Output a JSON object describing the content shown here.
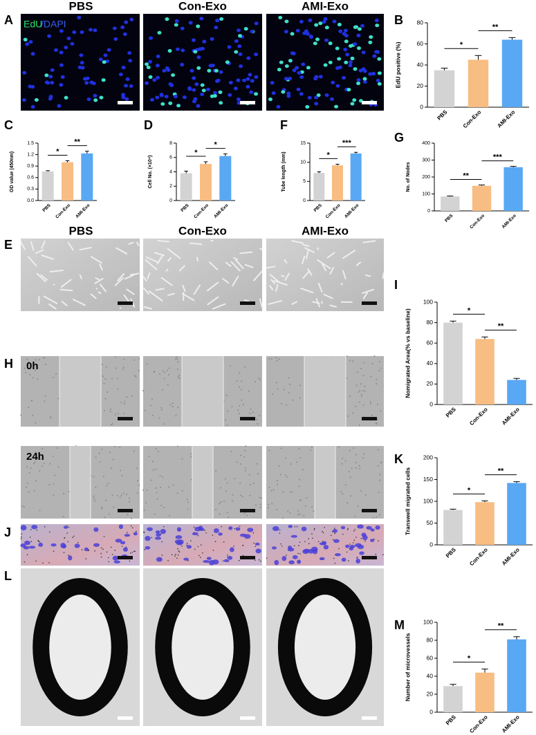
{
  "header_top": [
    "PBS",
    "Con-Exo",
    "AMI-Exo"
  ],
  "header_mid": [
    "PBS",
    "Con-Exo",
    "AMI-Exo"
  ],
  "image_panels": [
    "A",
    "E",
    "H",
    "J",
    "L"
  ],
  "stain": [
    "EdU",
    "/DAPI"
  ],
  "timepoints": [
    "0h",
    "24h"
  ],
  "chart_data": [
    {
      "type": "bar",
      "panel": "B",
      "ylabel": "EdU positive (%)",
      "categories": [
        "PBS",
        "Con-Exo",
        "AMI-Exo"
      ],
      "values": [
        35,
        45,
        64
      ],
      "errors": [
        2,
        4,
        2
      ],
      "colors": [
        "#d3d3d3",
        "#f8bd82",
        "#59a8f4"
      ],
      "ylim": [
        0,
        80
      ],
      "yticks": [
        0,
        20,
        40,
        60,
        80
      ],
      "significance": [
        {
          "between": [
            0,
            1
          ],
          "label": "*"
        },
        {
          "between": [
            1,
            2
          ],
          "label": "**"
        }
      ]
    },
    {
      "type": "bar",
      "panel": "C",
      "ylabel": "OD value (450nm)",
      "categories": [
        "PBS",
        "Con-Exo",
        "AMI-Exo"
      ],
      "values": [
        0.76,
        1.0,
        1.23
      ],
      "errors": [
        0.02,
        0.04,
        0.06
      ],
      "colors": [
        "#d3d3d3",
        "#f8bd82",
        "#59a8f4"
      ],
      "ylim": [
        0,
        1.5
      ],
      "yticks": [
        {
          "value": 0,
          "label": "0.0"
        },
        0.3,
        0.6,
        0.9,
        1.2,
        1.5
      ],
      "significance": [
        {
          "between": [
            0,
            1
          ],
          "label": "*"
        },
        {
          "between": [
            1,
            2
          ],
          "label": "**"
        }
      ]
    },
    {
      "type": "bar",
      "panel": "D",
      "ylabel": "Cell No. (×10⁴)",
      "categories": [
        "PBS",
        "Con-Exo",
        "AMI-Exo"
      ],
      "values": [
        3.8,
        5.1,
        6.2
      ],
      "errors": [
        0.3,
        0.3,
        0.3
      ],
      "colors": [
        "#d3d3d3",
        "#f8bd82",
        "#59a8f4"
      ],
      "ylim": [
        0,
        8
      ],
      "yticks": [
        0,
        2,
        4,
        6,
        8
      ],
      "significance": [
        {
          "between": [
            0,
            1
          ],
          "label": "*"
        },
        {
          "between": [
            1,
            2
          ],
          "label": "*"
        }
      ]
    },
    {
      "type": "bar",
      "panel": "F",
      "ylabel": "Tube length (mm)",
      "categories": [
        "PBS",
        "Con-Exo",
        "AMI-Exo"
      ],
      "values": [
        7.2,
        9.2,
        12.3
      ],
      "errors": [
        0.3,
        0.3,
        0.3
      ],
      "colors": [
        "#d3d3d3",
        "#f8bd82",
        "#59a8f4"
      ],
      "ylim": [
        0,
        15
      ],
      "yticks": [
        0,
        5,
        10,
        15
      ],
      "significance": [
        {
          "between": [
            0,
            1
          ],
          "label": "*"
        },
        {
          "between": [
            1,
            2
          ],
          "label": "***"
        }
      ]
    },
    {
      "type": "bar",
      "panel": "G",
      "ylabel": "No. of Nodes",
      "categories": [
        "PBS",
        "Con-Exo",
        "AMI-Exo"
      ],
      "values": [
        85,
        148,
        258
      ],
      "errors": [
        3,
        5,
        5
      ],
      "colors": [
        "#d3d3d3",
        "#f8bd82",
        "#59a8f4"
      ],
      "ylim": [
        0,
        400
      ],
      "yticks": [
        0,
        100,
        200,
        300,
        400
      ],
      "significance": [
        {
          "between": [
            0,
            1
          ],
          "label": "**"
        },
        {
          "between": [
            1,
            2
          ],
          "label": "***"
        }
      ]
    },
    {
      "type": "bar",
      "panel": "I",
      "ylabel": "Nomigrated Area(% vs baseline)",
      "categories": [
        "PBS",
        "Con-Exo",
        "AMI-Exo"
      ],
      "values": [
        80,
        64,
        24
      ],
      "errors": [
        1.5,
        2,
        1.5
      ],
      "colors": [
        "#d3d3d3",
        "#f8bd82",
        "#59a8f4"
      ],
      "ylim": [
        0,
        100
      ],
      "yticks": [
        0,
        20,
        40,
        60,
        80,
        100
      ],
      "significance": [
        {
          "between": [
            0,
            1
          ],
          "label": "*"
        },
        {
          "between": [
            1,
            2
          ],
          "label": "**"
        }
      ]
    },
    {
      "type": "bar",
      "panel": "K",
      "ylabel": "Transwell migrated cells",
      "categories": [
        "PBS",
        "Con-Exo",
        "AMI-Exo"
      ],
      "values": [
        80,
        98,
        142
      ],
      "errors": [
        2,
        3,
        3
      ],
      "colors": [
        "#d3d3d3",
        "#f8bd82",
        "#59a8f4"
      ],
      "ylim": [
        0,
        200
      ],
      "yticks": [
        0,
        50,
        100,
        150,
        200
      ],
      "significance": [
        {
          "between": [
            0,
            1
          ],
          "label": "*"
        },
        {
          "between": [
            1,
            2
          ],
          "label": "**"
        }
      ]
    },
    {
      "type": "bar",
      "panel": "M",
      "ylabel": "Number of microvessels",
      "categories": [
        "PBS",
        "Con-Exo",
        "AMI-Exo"
      ],
      "values": [
        29,
        44,
        81
      ],
      "errors": [
        2,
        4,
        3
      ],
      "colors": [
        "#d3d3d3",
        "#f8bd82",
        "#59a8f4"
      ],
      "ylim": [
        0,
        100
      ],
      "yticks": [
        0,
        20,
        40,
        60,
        80,
        100
      ],
      "significance": [
        {
          "between": [
            0,
            1
          ],
          "label": "*"
        },
        {
          "between": [
            1,
            2
          ],
          "label": "**"
        }
      ]
    }
  ]
}
